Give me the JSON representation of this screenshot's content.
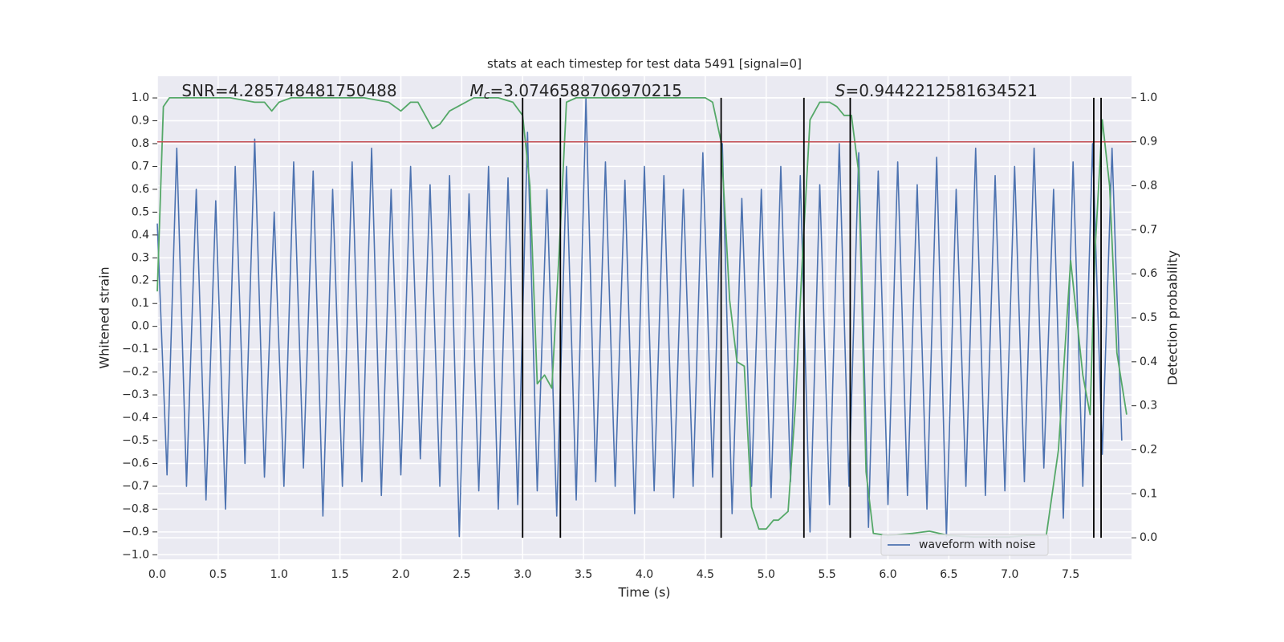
{
  "chart_data": {
    "type": "line",
    "title": "stats at each timestep for test data 5491 [signal=0]",
    "xlabel": "Time (s)",
    "ylabel": "Whitened strain",
    "y2label": "Detection probability",
    "annotations": [
      {
        "text": "SNR=4.285748481750488",
        "x": 0.2
      },
      {
        "symbol": "M",
        "subscript": "c",
        "text": "=3.0746588706970215",
        "x": 2.6
      },
      {
        "symbol": "S",
        "text": "=0.9442212581634521",
        "x": 5.6
      }
    ],
    "xlim": [
      0,
      8
    ],
    "ylim": [
      -1.02,
      1.095
    ],
    "y2lim": [
      -0.049,
      1.049
    ],
    "xticks": [
      {
        "value": 0,
        "label": "0.0"
      },
      {
        "value": 0.5,
        "label": "0.5"
      },
      {
        "value": 1,
        "label": "1.0"
      },
      {
        "value": 1.5,
        "label": "1.5"
      },
      {
        "value": 2,
        "label": "2.0"
      },
      {
        "value": 2.5,
        "label": "2.5"
      },
      {
        "value": 3,
        "label": "3.0"
      },
      {
        "value": 3.5,
        "label": "3.5"
      },
      {
        "value": 4,
        "label": "4.0"
      },
      {
        "value": 4.5,
        "label": "4.5"
      },
      {
        "value": 5,
        "label": "5.0"
      },
      {
        "value": 5.5,
        "label": "5.5"
      },
      {
        "value": 6,
        "label": "6.0"
      },
      {
        "value": 6.5,
        "label": "6.5"
      },
      {
        "value": 7,
        "label": "7.0"
      },
      {
        "value": 7.5,
        "label": "7.5"
      }
    ],
    "yticks": [
      {
        "value": -1,
        "label": "−1.0"
      },
      {
        "value": -0.9,
        "label": "−0.9"
      },
      {
        "value": -0.8,
        "label": "−0.8"
      },
      {
        "value": -0.7,
        "label": "−0.7"
      },
      {
        "value": -0.6,
        "label": "−0.6"
      },
      {
        "value": -0.5,
        "label": "−0.5"
      },
      {
        "value": -0.4,
        "label": "−0.4"
      },
      {
        "value": -0.3,
        "label": "−0.3"
      },
      {
        "value": -0.2,
        "label": "−0.2"
      },
      {
        "value": -0.1,
        "label": "−0.1"
      },
      {
        "value": 0,
        "label": "0.0"
      },
      {
        "value": 0.1,
        "label": "0.1"
      },
      {
        "value": 0.2,
        "label": "0.2"
      },
      {
        "value": 0.3,
        "label": "0.3"
      },
      {
        "value": 0.4,
        "label": "0.4"
      },
      {
        "value": 0.5,
        "label": "0.5"
      },
      {
        "value": 0.6,
        "label": "0.6"
      },
      {
        "value": 0.7,
        "label": "0.7"
      },
      {
        "value": 0.8,
        "label": "0.8"
      },
      {
        "value": 0.9,
        "label": "0.9"
      },
      {
        "value": 1,
        "label": "1.0"
      }
    ],
    "y2ticks": [
      {
        "value": 0,
        "label": "0.0"
      },
      {
        "value": 0.1,
        "label": "0.1"
      },
      {
        "value": 0.2,
        "label": "0.2"
      },
      {
        "value": 0.3,
        "label": "0.3"
      },
      {
        "value": 0.4,
        "label": "0.4"
      },
      {
        "value": 0.5,
        "label": "0.5"
      },
      {
        "value": 0.6,
        "label": "0.6"
      },
      {
        "value": 0.7,
        "label": "0.7"
      },
      {
        "value": 0.8,
        "label": "0.8"
      },
      {
        "value": 0.9,
        "label": "0.9"
      },
      {
        "value": 1,
        "label": "1.0"
      }
    ],
    "grid": true,
    "legend_position": "lower right",
    "series": [
      {
        "name": "waveform with noise",
        "color": "#4c72b0",
        "x": [
          0,
          0.08,
          0.16,
          0.24,
          0.32,
          0.4,
          0.48,
          0.56,
          0.64,
          0.72,
          0.8,
          0.88,
          0.96,
          1.04,
          1.12,
          1.2,
          1.28,
          1.36,
          1.44,
          1.52,
          1.6,
          1.68,
          1.76,
          1.84,
          1.92,
          2.0,
          2.08,
          2.16,
          2.24,
          2.32,
          2.4,
          2.48,
          2.56,
          2.64,
          2.72,
          2.8,
          2.88,
          2.96,
          3.04,
          3.12,
          3.2,
          3.28,
          3.36,
          3.44,
          3.52,
          3.6,
          3.68,
          3.76,
          3.84,
          3.92,
          4.0,
          4.08,
          4.16,
          4.24,
          4.32,
          4.4,
          4.48,
          4.56,
          4.64,
          4.72,
          4.8,
          4.88,
          4.96,
          5.04,
          5.12,
          5.2,
          5.28,
          5.36,
          5.44,
          5.52,
          5.6,
          5.68,
          5.76,
          5.84,
          5.92,
          6.0,
          6.08,
          6.16,
          6.24,
          6.32,
          6.4,
          6.48,
          6.56,
          6.64,
          6.72,
          6.8,
          6.88,
          6.96,
          7.04,
          7.12,
          7.2,
          7.28,
          7.36,
          7.44,
          7.52,
          7.6,
          7.68,
          7.76,
          7.84,
          7.92
        ],
        "values": [
          0.45,
          -0.65,
          0.78,
          -0.7,
          0.6,
          -0.76,
          0.55,
          -0.8,
          0.7,
          -0.6,
          0.82,
          -0.66,
          0.5,
          -0.7,
          0.72,
          -0.62,
          0.68,
          -0.83,
          0.6,
          -0.7,
          0.72,
          -0.68,
          0.78,
          -0.74,
          0.6,
          -0.65,
          0.7,
          -0.58,
          0.62,
          -0.7,
          0.66,
          -0.92,
          0.58,
          -0.72,
          0.7,
          -0.8,
          0.65,
          -0.78,
          0.85,
          -0.72,
          0.6,
          -0.83,
          0.7,
          -0.76,
          1.0,
          -0.68,
          0.72,
          -0.7,
          0.64,
          -0.82,
          0.7,
          -0.72,
          0.66,
          -0.75,
          0.6,
          -0.7,
          0.76,
          -0.66,
          0.8,
          -0.82,
          0.56,
          -0.7,
          0.6,
          -0.75,
          0.7,
          -0.68,
          0.66,
          -0.9,
          0.62,
          -0.78,
          0.8,
          -0.7,
          0.76,
          -0.88,
          0.68,
          -0.78,
          0.72,
          -0.74,
          0.62,
          -0.8,
          0.74,
          -0.92,
          0.6,
          -0.7,
          0.78,
          -0.74,
          0.66,
          -0.72,
          0.7,
          -0.68,
          0.78,
          -0.62,
          0.6,
          -0.84,
          0.72,
          -0.7,
          0.8,
          -0.56,
          0.78,
          -0.5
        ]
      },
      {
        "color": "#55a868",
        "axis": "y2",
        "x": [
          0,
          0.05,
          0.1,
          0.6,
          0.8,
          0.88,
          0.94,
          1.0,
          1.1,
          1.7,
          1.9,
          2.0,
          2.08,
          2.14,
          2.26,
          2.32,
          2.4,
          2.6,
          2.8,
          2.92,
          3.0,
          3.06,
          3.12,
          3.18,
          3.24,
          3.3,
          3.36,
          3.44,
          4.4,
          4.5,
          4.56,
          4.63,
          4.7,
          4.76,
          4.82,
          4.88,
          4.94,
          5.0,
          5.06,
          5.1,
          5.18,
          5.24,
          5.3,
          5.36,
          5.44,
          5.52,
          5.58,
          5.64,
          5.7,
          5.76,
          5.82,
          5.88,
          6.0,
          6.2,
          6.34,
          6.5,
          6.7,
          7.0,
          7.14,
          7.3,
          7.4,
          7.5,
          7.6,
          7.66,
          7.7,
          7.76,
          7.82,
          7.88,
          7.96
        ],
        "values": [
          0.56,
          0.98,
          1.0,
          1.0,
          0.99,
          0.99,
          0.97,
          0.99,
          1.0,
          1.0,
          0.99,
          0.97,
          0.99,
          0.99,
          0.93,
          0.94,
          0.97,
          1.0,
          1.0,
          0.99,
          0.96,
          0.8,
          0.35,
          0.37,
          0.34,
          0.65,
          0.99,
          1.0,
          1.0,
          1.0,
          0.99,
          0.9,
          0.54,
          0.4,
          0.39,
          0.07,
          0.02,
          0.02,
          0.04,
          0.04,
          0.06,
          0.3,
          0.65,
          0.95,
          0.99,
          0.99,
          0.98,
          0.96,
          0.96,
          0.83,
          0.15,
          0.01,
          0.005,
          0.01,
          0.015,
          0.005,
          0.002,
          0.002,
          0.005,
          0.005,
          0.2,
          0.63,
          0.37,
          0.28,
          0.65,
          0.95,
          0.8,
          0.42,
          0.28
        ]
      }
    ],
    "hline": {
      "y2": 0.9,
      "color": "#c44e52"
    },
    "vlines": {
      "x": [
        3.0,
        3.31,
        4.63,
        5.31,
        5.69,
        7.69,
        7.75
      ],
      "y2min": 0,
      "y2max": 1,
      "color": "#000000"
    }
  }
}
